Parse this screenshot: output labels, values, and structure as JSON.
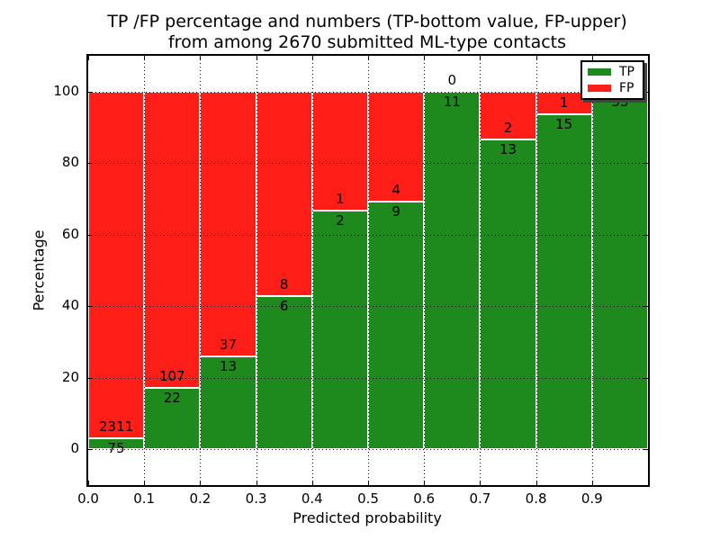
{
  "figure": {
    "title_line1": "TP /FP percentage and numbers (TP-bottom value, FP-upper)",
    "title_line2": "from among 2670 submitted ML-type contacts"
  },
  "chart_data": {
    "type": "bar",
    "stacked": true,
    "normalized_to_percent": true,
    "title": "TP /FP percentage and numbers (TP-bottom value, FP-upper) from among 2670 submitted ML-type contacts",
    "xlabel": "Predicted probability",
    "ylabel": "Percentage",
    "xlim": [
      0.0,
      1.0
    ],
    "ylim": [
      -10,
      110
    ],
    "x_ticks": [
      "0.0",
      "0.1",
      "0.2",
      "0.3",
      "0.4",
      "0.5",
      "0.6",
      "0.7",
      "0.8",
      "0.9"
    ],
    "y_ticks": [
      0,
      20,
      40,
      60,
      80,
      100
    ],
    "grid": "dotted-black-on",
    "total_submitted_contacts": 2670,
    "categories": [
      "0.0-0.1",
      "0.1-0.2",
      "0.2-0.3",
      "0.3-0.4",
      "0.4-0.5",
      "0.5-0.6",
      "0.6-0.7",
      "0.7-0.8",
      "0.8-0.9",
      "0.9-1.0"
    ],
    "series": [
      {
        "name": "TP",
        "color": "#1e8a1e",
        "counts": [
          75,
          22,
          13,
          6,
          2,
          9,
          11,
          13,
          15,
          33
        ]
      },
      {
        "name": "FP",
        "color": "#fe1d17",
        "counts": [
          2311,
          107,
          37,
          8,
          1,
          4,
          0,
          2,
          1,
          0
        ]
      }
    ],
    "tp_percent_of_bin": [
      3.1,
      17.1,
      26.0,
      42.9,
      66.7,
      69.2,
      100.0,
      86.7,
      93.8,
      100.0
    ],
    "legend": {
      "position": "upper right",
      "entries": [
        {
          "label": "TP",
          "color": "#1e8a1e"
        },
        {
          "label": "FP",
          "color": "#fe1d17"
        }
      ]
    }
  }
}
